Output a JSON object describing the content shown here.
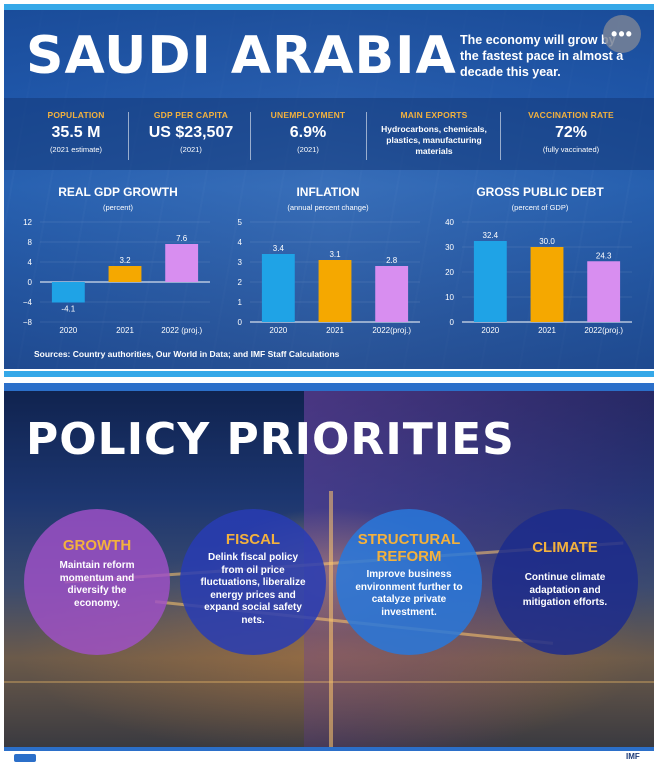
{
  "header": {
    "title": "SAUDI ARABIA",
    "tagline": "The economy will grow by the fastest pace in almost a decade this year."
  },
  "stats": [
    {
      "label": "POPULATION",
      "value": "35.5 M",
      "note": "(2021 estimate)"
    },
    {
      "label": "GDP PER CAPITA",
      "value": "US $23,507",
      "note": "(2021)"
    },
    {
      "label": "UNEMPLOYMENT",
      "value": "6.9%",
      "note": "(2021)"
    },
    {
      "label": "MAIN EXPORTS",
      "value": "Hydrocarbons, chemicals, plastics, manufacturing materials",
      "note": ""
    },
    {
      "label": "VACCINATION RATE",
      "value": "72%",
      "note": "(fully vaccinated)"
    }
  ],
  "colors": {
    "c2020": "#1fa3e6",
    "c2021": "#f5a800",
    "c2022": "#d88ef0",
    "accent": "#f3b13d"
  },
  "chart_data": [
    {
      "type": "bar",
      "title": "REAL GDP GROWTH",
      "subtitle": "(percent)",
      "categories": [
        "2020",
        "2021",
        "2022 (proj.)"
      ],
      "values": [
        -4.1,
        3.2,
        7.6
      ],
      "value_labels": [
        "-4.1",
        "3.2",
        "7.6"
      ],
      "yticks": [
        "12",
        "8",
        "4",
        "0",
        "−4",
        "−8"
      ],
      "ylim": [
        -8,
        12
      ]
    },
    {
      "type": "bar",
      "title": "INFLATION",
      "subtitle": "(annual percent change)",
      "categories": [
        "2020",
        "2021",
        "2022(proj.)"
      ],
      "values": [
        3.4,
        3.1,
        2.8
      ],
      "value_labels": [
        "3.4",
        "3.1",
        "2.8"
      ],
      "yticks": [
        "5",
        "4",
        "3",
        "2",
        "1",
        "0"
      ],
      "ylim": [
        0,
        5
      ]
    },
    {
      "type": "bar",
      "title": "GROSS PUBLIC DEBT",
      "subtitle": "(percent of GDP)",
      "categories": [
        "2020",
        "2021",
        "2022(proj.)"
      ],
      "values": [
        32.4,
        30.0,
        24.3
      ],
      "value_labels": [
        "32.4",
        "30.0",
        "24.3"
      ],
      "yticks": [
        "40",
        "30",
        "20",
        "10",
        "0"
      ],
      "ylim": [
        0,
        40
      ]
    }
  ],
  "sources": "Sources: Country authorities, Our World in Data; and IMF Staff Calculations",
  "policy": {
    "title": "POLICY PRIORITIES",
    "items": [
      {
        "title": "GROWTH",
        "body": "Maintain reform momentum and diversify the economy."
      },
      {
        "title": "FISCAL",
        "body": "Delink fiscal policy from oil price fluctuations, liberalize energy prices and expand social safety nets."
      },
      {
        "title": "STRUCTURAL REFORM",
        "body": "Improve business environment further to catalyze private investment."
      },
      {
        "title": "CLIMATE",
        "body": "Continue climate adaptation and mitigation efforts."
      }
    ]
  },
  "footer": {
    "right": "IMF"
  }
}
